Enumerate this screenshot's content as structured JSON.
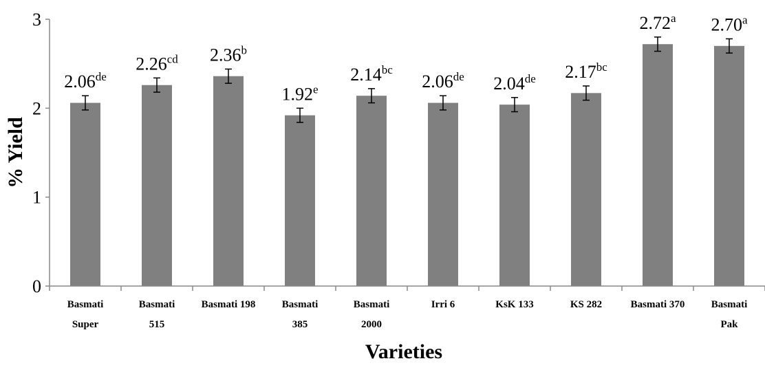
{
  "chart_data": {
    "type": "bar",
    "title": "",
    "xlabel": "Varieties",
    "ylabel": "% Yield",
    "ylim": [
      0,
      3
    ],
    "yticks": [
      0,
      1,
      2,
      3
    ],
    "grid": false,
    "bar_color": "#808080",
    "categories": [
      [
        "Basmati",
        "Super"
      ],
      [
        "Basmati",
        "515"
      ],
      [
        "Basmati 198"
      ],
      [
        "Basmati",
        "385"
      ],
      [
        "Basmati",
        "2000"
      ],
      [
        "Irri 6"
      ],
      [
        "KsK 133"
      ],
      [
        "KS 282"
      ],
      [
        "Basmati 370"
      ],
      [
        "Basmati",
        "Pak"
      ]
    ],
    "values": [
      2.06,
      2.26,
      2.36,
      1.92,
      2.14,
      2.06,
      2.04,
      2.17,
      2.72,
      2.7
    ],
    "error": [
      0.08,
      0.08,
      0.08,
      0.08,
      0.08,
      0.08,
      0.08,
      0.08,
      0.08,
      0.08
    ],
    "data_labels": [
      {
        "value": "2.06",
        "letters": "de"
      },
      {
        "value": "2.26",
        "letters": "cd"
      },
      {
        "value": "2.36",
        "letters": "b"
      },
      {
        "value": "1.92",
        "letters": "e"
      },
      {
        "value": "2.14",
        "letters": "bc"
      },
      {
        "value": "2.06",
        "letters": "de"
      },
      {
        "value": "2.04",
        "letters": "de"
      },
      {
        "value": "2.17",
        "letters": "bc"
      },
      {
        "value": "2.72",
        "letters": "a"
      },
      {
        "value": "2.70",
        "letters": "a"
      }
    ]
  }
}
